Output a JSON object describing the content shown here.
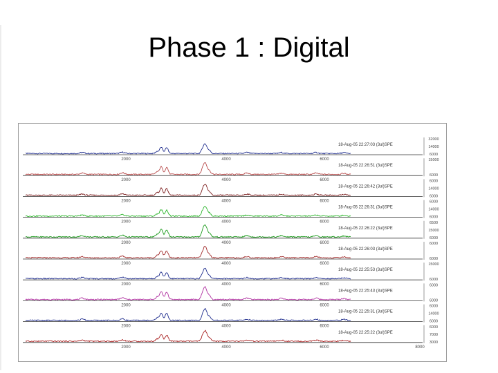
{
  "slide": {
    "title": "Phase 1 : Digital"
  },
  "chart_data": {
    "type": "line",
    "title": "",
    "xlabel": "",
    "ylabel": "",
    "x_ticks": [
      "2000",
      "4000",
      "6000"
    ],
    "last_x_ticks": [
      "2000",
      "4000",
      "6000",
      "8000"
    ],
    "grid": false,
    "legend": "none",
    "series": [
      {
        "color": "#1c2a8c",
        "label": "18-Aug-05 22:27:03  (3ul)SPE",
        "yticks": [
          "32000",
          "14000",
          "6000"
        ]
      },
      {
        "color": "#b84a4a",
        "label": "18-Aug-05 22:26:51  (3ul)SPE",
        "yticks": [
          "15000",
          "6000"
        ]
      },
      {
        "color": "#7a1a1a",
        "label": "18-Aug-05 22:26:42  (3ul)SPE",
        "yticks": [
          "6000",
          "14000",
          "6000"
        ]
      },
      {
        "color": "#28b428",
        "label": "18-Aug-05 22:26:31  (3ul)SPE",
        "yticks": [
          "6000",
          "14000",
          "6000"
        ]
      },
      {
        "color": "#1a9a1a",
        "label": "18-Aug-05 22:26:22  (3ul)SPE",
        "yticks": [
          "6500",
          "15000",
          "6000"
        ]
      },
      {
        "color": "#a02828",
        "label": "18-Aug-05 22:26:03  (3ul)SPE",
        "yticks": [
          "6000",
          "6000"
        ]
      },
      {
        "color": "#1c2a8c",
        "label": "18-Aug-05 22:25:53  (3ul)SPE",
        "yticks": [
          "15000",
          "6000"
        ]
      },
      {
        "color": "#b030a0",
        "label": "18-Aug-05 22:25:43  (3ul)SPE",
        "yticks": [
          "6000",
          "6000"
        ]
      },
      {
        "color": "#1c2a8c",
        "label": "18-Aug-05 22:25:31  (3ul)SPE",
        "yticks": [
          "6000",
          "14000",
          "6000"
        ]
      },
      {
        "color": "#a82020",
        "label": "18-Aug-05 22:25:22  (3ul)SPE",
        "yticks": [
          "6000",
          "7000",
          "3000"
        ]
      }
    ]
  }
}
